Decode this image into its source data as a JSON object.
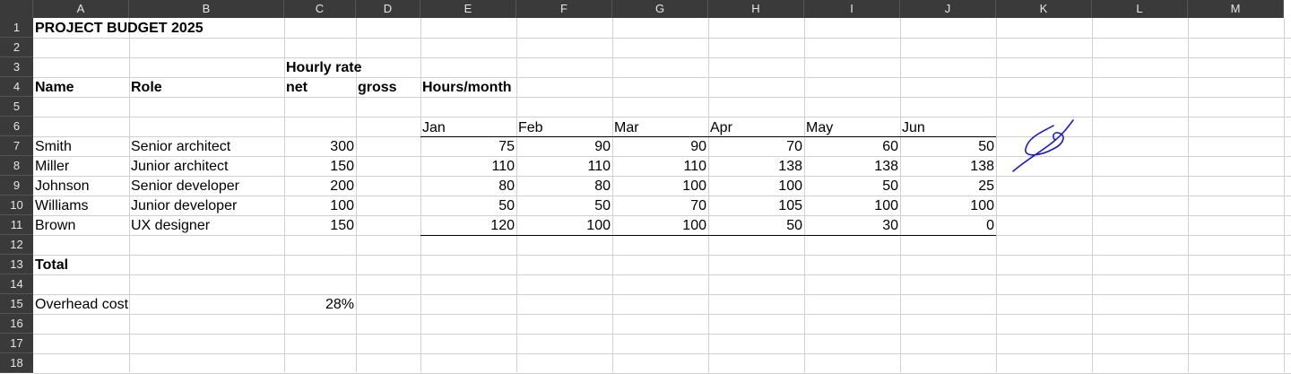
{
  "columns": [
    "A",
    "B",
    "C",
    "D",
    "E",
    "F",
    "G",
    "H",
    "I",
    "J",
    "K",
    "L",
    "M"
  ],
  "rows": [
    "1",
    "2",
    "3",
    "4",
    "5",
    "6",
    "7",
    "8",
    "9",
    "10",
    "11",
    "12",
    "13",
    "14",
    "15",
    "16",
    "17",
    "18"
  ],
  "title": "PROJECT BUDGET 2025",
  "headers": {
    "hourly_rate": "Hourly rate",
    "name": "Name",
    "role": "Role",
    "net": "net",
    "gross": "gross",
    "hours_month": "Hours/month"
  },
  "months": [
    "Jan",
    "Feb",
    "Mar",
    "Apr",
    "May",
    "Jun"
  ],
  "staff": [
    {
      "name": "Smith",
      "role": "Senior architect",
      "net": "300",
      "hours": [
        "75",
        "90",
        "90",
        "70",
        "60",
        "50"
      ]
    },
    {
      "name": "Miller",
      "role": "Junior architect",
      "net": "150",
      "hours": [
        "110",
        "110",
        "110",
        "138",
        "138",
        "138"
      ]
    },
    {
      "name": "Johnson",
      "role": "Senior developer",
      "net": "200",
      "hours": [
        "80",
        "80",
        "100",
        "100",
        "50",
        "25"
      ]
    },
    {
      "name": "Williams",
      "role": "Junior developer",
      "net": "100",
      "hours": [
        "50",
        "50",
        "70",
        "105",
        "100",
        "100"
      ]
    },
    {
      "name": "Brown",
      "role": "UX designer",
      "net": "150",
      "hours": [
        "120",
        "100",
        "100",
        "50",
        "30",
        "0"
      ]
    }
  ],
  "total_label": "Total",
  "overhead": {
    "label": "Overhead cost",
    "value": "28%"
  },
  "signature_color": "#1a1acc"
}
